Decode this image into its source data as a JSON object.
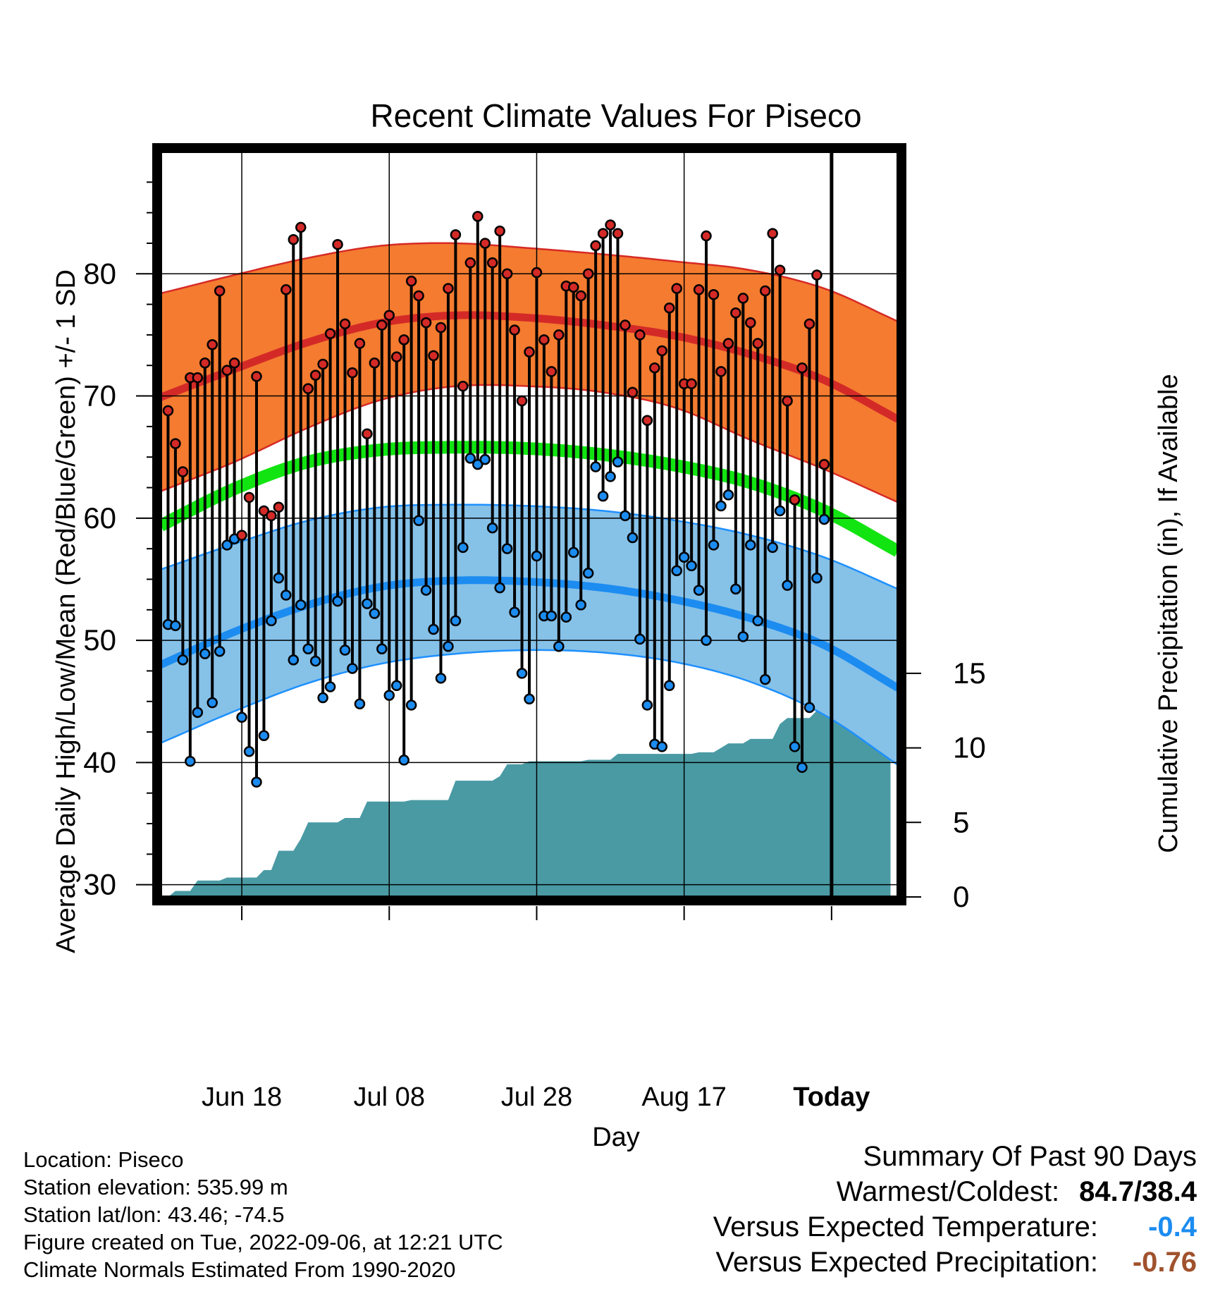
{
  "chart_data": {
    "type": "line",
    "title": "Recent Climate Values For Piseco",
    "xlabel": "Day",
    "ylabel": "Average Daily High/Low/Mean (Red/Blue/Green) +/- 1 SD",
    "y2label": "Cumulative Precipitation (in), If Available",
    "x_tick_labels": [
      "Jun 18",
      "Jul 08",
      "Jul 28",
      "Aug 17",
      "Today"
    ],
    "x_tick_days": [
      10,
      30,
      50,
      70,
      90
    ],
    "xlim": [
      -1,
      99
    ],
    "ylim": [
      29,
      90
    ],
    "y_ticks": [
      30,
      40,
      50,
      60,
      70,
      80
    ],
    "y2lim": [
      0,
      50
    ],
    "y2_ticks": [
      0,
      5,
      10,
      15
    ],
    "today_day": 90,
    "today_label": [
      "90",
      "Days"
    ],
    "grid": true,
    "colors": {
      "high_band": "#f47b30",
      "high_band_edge": "#d62a25",
      "high_mean": "#d42a27",
      "low_band": "#86c1e8",
      "low_band_edge": "#1e90ff",
      "low_mean": "#1c8cf0",
      "mean_normal": "#12e412",
      "precip": "#4a9aa4",
      "high_dot": "#d42a27",
      "low_dot": "#1c8cf0",
      "temp_anomaly": "#1c8cf0",
      "precip_anomaly": "#a0522d"
    },
    "normals": {
      "day": [
        -1,
        9,
        19,
        29,
        39,
        49,
        59,
        69,
        79,
        89,
        99
      ],
      "high_mean": [
        69.9,
        72.2,
        74.4,
        76.0,
        76.6,
        76.4,
        75.8,
        74.9,
        73.4,
        71.3,
        68.1
      ],
      "high_sd_upper": [
        78.4,
        79.9,
        81.3,
        82.3,
        82.5,
        82.1,
        81.6,
        81.0,
        80.3,
        78.8,
        76.1
      ],
      "high_sd_lower": [
        62.2,
        64.6,
        67.4,
        69.7,
        70.8,
        70.8,
        70.3,
        69.0,
        66.4,
        64.0,
        61.3
      ],
      "mean_normal": [
        59.4,
        62.4,
        64.6,
        65.6,
        65.8,
        65.7,
        65.2,
        64.3,
        62.9,
        60.6,
        57.3
      ],
      "low_mean": [
        48.0,
        50.7,
        52.9,
        54.4,
        54.9,
        54.8,
        54.3,
        53.3,
        51.8,
        49.6,
        46.1
      ],
      "low_sd_upper": [
        55.8,
        57.9,
        59.8,
        60.9,
        61.1,
        61.0,
        60.6,
        59.8,
        58.6,
        56.8,
        54.2
      ],
      "low_sd_lower": [
        41.6,
        44.2,
        46.5,
        48.1,
        48.9,
        49.2,
        49.0,
        48.2,
        46.6,
        43.9,
        39.8
      ]
    },
    "highs": [
      68.8,
      66.1,
      63.8,
      71.5,
      71.5,
      72.7,
      74.2,
      78.6,
      72.1,
      72.7,
      58.6,
      61.7,
      71.6,
      60.6,
      60.2,
      60.9,
      78.7,
      82.8,
      83.8,
      70.6,
      71.7,
      72.6,
      75.1,
      82.4,
      75.9,
      71.9,
      74.3,
      66.9,
      72.7,
      75.8,
      76.6,
      73.2,
      74.6,
      79.4,
      78.2,
      76.0,
      73.3,
      75.6,
      78.8,
      83.2,
      70.8,
      80.9,
      84.7,
      82.5,
      80.9,
      83.5,
      80.0,
      75.4,
      69.6,
      73.6,
      80.1,
      74.6,
      72.0,
      75.0,
      79.0,
      78.9,
      78.2,
      80.0,
      82.3,
      83.3,
      84.0,
      83.3,
      75.8,
      70.3,
      75.0,
      68.0,
      72.3,
      73.7,
      77.2,
      78.8,
      71.0,
      71.0,
      78.7,
      83.1,
      78.3,
      72.0,
      74.3,
      76.8,
      78.0,
      76.0,
      74.3,
      78.6,
      83.3,
      80.3,
      69.6,
      61.5,
      72.3,
      75.9,
      79.9,
      64.4
    ],
    "lows": [
      51.3,
      51.2,
      48.4,
      40.1,
      44.1,
      48.9,
      44.9,
      49.1,
      57.8,
      58.3,
      43.7,
      40.9,
      38.4,
      42.2,
      51.6,
      55.1,
      53.7,
      48.4,
      52.9,
      49.3,
      48.3,
      45.3,
      46.2,
      53.2,
      49.2,
      47.7,
      44.8,
      53.0,
      52.2,
      49.3,
      45.5,
      46.3,
      40.2,
      44.7,
      59.8,
      54.1,
      50.9,
      46.9,
      49.5,
      51.6,
      57.6,
      64.9,
      64.4,
      64.8,
      59.2,
      54.3,
      57.5,
      52.3,
      47.3,
      45.2,
      56.9,
      52.0,
      52.0,
      49.5,
      51.9,
      57.2,
      52.9,
      55.5,
      64.2,
      61.8,
      63.4,
      64.6,
      60.2,
      58.4,
      50.1,
      44.7,
      41.5,
      41.3,
      46.3,
      55.7,
      56.8,
      56.1,
      54.1,
      50.0,
      57.8,
      61.0,
      61.9,
      54.2,
      50.3,
      57.8,
      51.6,
      46.8,
      57.6,
      60.6,
      54.5,
      41.3,
      39.6,
      44.5,
      55.1,
      59.9
    ],
    "precip_cumulative": [
      [
        0.0,
        0.0
      ],
      [
        1.0,
        0.4
      ],
      [
        3.0,
        0.4
      ],
      [
        4.0,
        1.1
      ],
      [
        7.0,
        1.1
      ],
      [
        8.0,
        1.3
      ],
      [
        12.0,
        1.3
      ],
      [
        13.0,
        1.8
      ],
      [
        14.0,
        1.8
      ],
      [
        15.0,
        3.1
      ],
      [
        17.0,
        3.1
      ],
      [
        18.0,
        3.9
      ],
      [
        19.0,
        5.0
      ],
      [
        23.0,
        5.0
      ],
      [
        24.0,
        5.3
      ],
      [
        26.0,
        5.3
      ],
      [
        27.0,
        6.4
      ],
      [
        32.0,
        6.4
      ],
      [
        33.0,
        6.5
      ],
      [
        38.0,
        6.5
      ],
      [
        39.0,
        7.8
      ],
      [
        44.0,
        7.8
      ],
      [
        45.0,
        8.1
      ],
      [
        46.0,
        8.9
      ],
      [
        48.0,
        8.9
      ],
      [
        49.0,
        9.1
      ],
      [
        56.0,
        9.1
      ],
      [
        57.0,
        9.2
      ],
      [
        60.0,
        9.2
      ],
      [
        61.0,
        9.6
      ],
      [
        71.0,
        9.6
      ],
      [
        72.0,
        9.7
      ],
      [
        74.0,
        9.7
      ],
      [
        75.0,
        10.0
      ],
      [
        76.0,
        10.3
      ],
      [
        78.0,
        10.3
      ],
      [
        79.0,
        10.6
      ],
      [
        82.0,
        10.6
      ],
      [
        83.0,
        11.6
      ],
      [
        84.0,
        12.0
      ],
      [
        87.0,
        12.0
      ],
      [
        88.0,
        12.5
      ],
      [
        98.0,
        12.5
      ]
    ]
  },
  "footer": {
    "location": "Location: Piseco",
    "elevation": "Station elevation: 535.99 m",
    "latlon": "Station lat/lon: 43.46; -74.5",
    "created": "Figure created on Tue, 2022-09-06, at 12:21 UTC",
    "normals": "Climate Normals Estimated From 1990-2020"
  },
  "summary": {
    "title": "Summary Of Past 90 Days",
    "warmest_label": "Warmest/Coldest:",
    "warmest_value": "84.7/38.4",
    "temp_label": "Versus Expected Temperature:",
    "temp_value": "-0.4",
    "precip_label": "Versus Expected Precipitation:",
    "precip_value": "-0.76"
  }
}
